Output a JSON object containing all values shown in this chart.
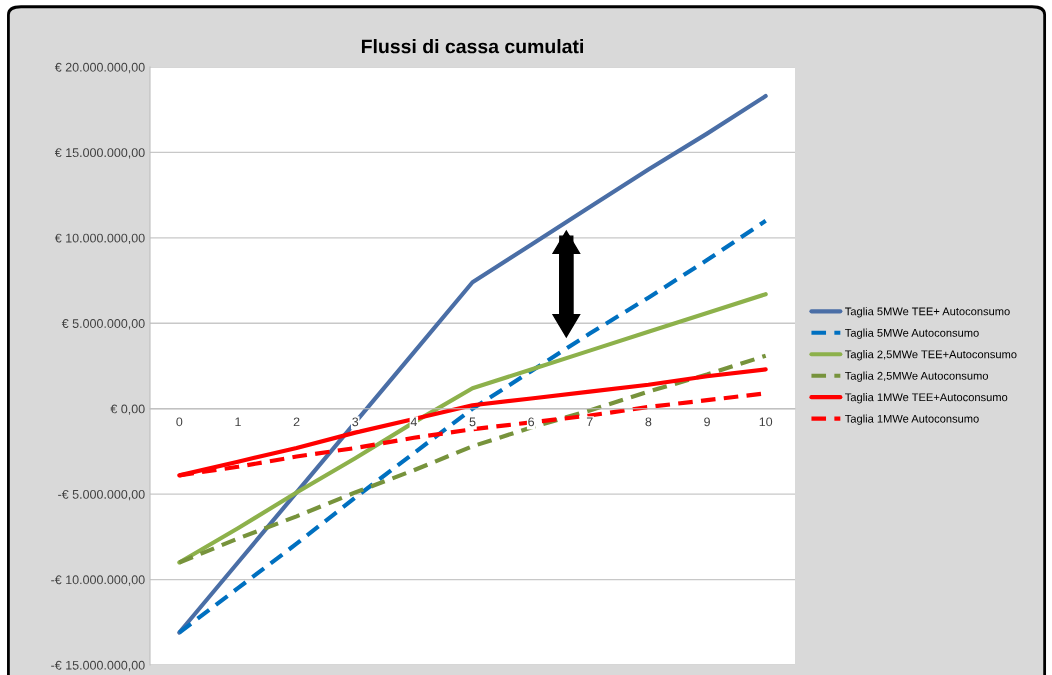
{
  "chart_data": {
    "type": "line",
    "title": "Flussi di cassa cumulati",
    "categories": [
      "0",
      "1",
      "2",
      "3",
      "4",
      "5",
      "6",
      "7",
      "8",
      "9",
      "10"
    ],
    "series": [
      {
        "name": "Taglia 5MWe TEE+ Autoconsumo",
        "color": "#4a6ea6",
        "line_style": "solid",
        "values": [
          -13100000,
          -9000000,
          -4900000,
          -800000,
          3300000,
          7400000,
          9600000,
          11800000,
          14000000,
          16100000,
          18300000
        ]
      },
      {
        "name": "Taglia 5MWe Autoconsumo",
        "color": "#0070c0",
        "line_style": "dashed",
        "values": [
          -13100000,
          -10500000,
          -7900000,
          -5200000,
          -2600000,
          0,
          2200000,
          4400000,
          6500000,
          8700000,
          11000000
        ]
      },
      {
        "name": "Taglia 2,5MWe TEE+Autoconsumo",
        "color": "#8db14b",
        "line_style": "solid",
        "values": [
          -9000000,
          -7000000,
          -4900000,
          -2900000,
          -800000,
          1200000,
          2300000,
          3400000,
          4500000,
          5600000,
          6700000
        ]
      },
      {
        "name": "Taglia 2,5MWe Autoconsumo",
        "color": "#77933c",
        "line_style": "dashed",
        "values": [
          -9000000,
          -7600000,
          -6300000,
          -4900000,
          -3600000,
          -2200000,
          -1100000,
          -100000,
          1000000,
          2000000,
          3100000
        ]
      },
      {
        "name": "Taglia 1MWe TEE+Autoconsumo",
        "color": "#ff0000",
        "line_style": "solid",
        "values": [
          -3900000,
          -3100000,
          -2300000,
          -1400000,
          -600000,
          200000,
          600000,
          1000000,
          1400000,
          1900000,
          2300000
        ]
      },
      {
        "name": "Taglia 1MWe Autoconsumo",
        "color": "#ff0000",
        "line_style": "dashed",
        "values": [
          -3900000,
          -3400000,
          -2800000,
          -2300000,
          -1700000,
          -1200000,
          -800000,
          -400000,
          100000,
          500000,
          900000
        ]
      }
    ],
    "ylim": [
      -15000000,
      20000000
    ],
    "yticks": [
      {
        "value": -15000000,
        "label": "-€ 15.000.000,00"
      },
      {
        "value": -10000000,
        "label": "-€ 10.000.000,00"
      },
      {
        "value": -5000000,
        "label": "-€ 5.000.000,00"
      },
      {
        "value": 0,
        "label": "€ 0,00"
      },
      {
        "value": 5000000,
        "label": "€ 5.000.000,00"
      },
      {
        "value": 10000000,
        "label": "€ 10.000.000,00"
      },
      {
        "value": 15000000,
        "label": "€ 15.000.000,00"
      },
      {
        "value": 20000000,
        "label": "€ 20.000.000,00"
      }
    ],
    "grid": "y",
    "legend": "right",
    "marker": "none"
  }
}
